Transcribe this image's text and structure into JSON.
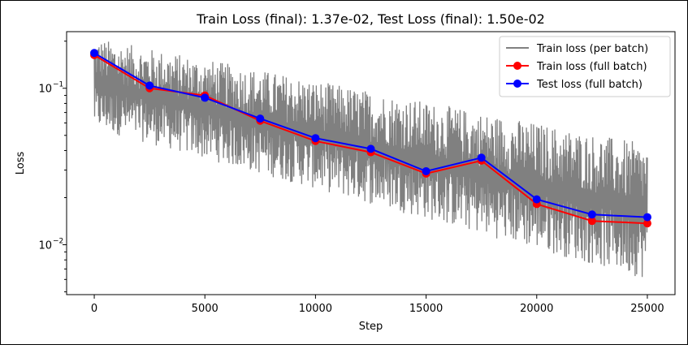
{
  "chart_data": {
    "type": "line",
    "title": "Train Loss (final): 1.37e-02, Test Loss (final): 1.50e-02",
    "xlabel": "Step",
    "ylabel": "Loss",
    "yscale": "log",
    "xlim": [
      -1250,
      26250
    ],
    "ylim": [
      0.0048,
      0.23
    ],
    "x_ticks": [
      0,
      5000,
      10000,
      15000,
      20000,
      25000
    ],
    "x_tick_labels": [
      "0",
      "5000",
      "10000",
      "15000",
      "20000",
      "25000"
    ],
    "y_major_ticks": [
      0.01,
      0.1
    ],
    "y_tick_labels": [
      "10",
      "10"
    ],
    "y_tick_exponents": [
      "−2",
      "−1"
    ],
    "legend_position": "top-right",
    "noise_band": {
      "name": "Train loss (per batch)",
      "color": "#808080",
      "x_range": [
        0,
        25000
      ],
      "upper_start": 0.21,
      "upper_end": 0.044,
      "lower_start": 0.055,
      "lower_end": 0.006
    },
    "series": [
      {
        "name": "Train loss (per batch)",
        "color": "#808080",
        "style": "line"
      },
      {
        "name": "Train loss (full batch)",
        "color": "#ff0000",
        "style": "line-marker",
        "x": [
          0,
          2500,
          5000,
          7500,
          10000,
          12500,
          15000,
          17500,
          20000,
          22500,
          25000
        ],
        "values": [
          0.163,
          0.1,
          0.09,
          0.062,
          0.046,
          0.039,
          0.0285,
          0.0345,
          0.0182,
          0.0142,
          0.0137
        ]
      },
      {
        "name": "Test loss (full batch)",
        "color": "#0000ff",
        "style": "line-marker",
        "x": [
          0,
          2500,
          5000,
          7500,
          10000,
          12500,
          15000,
          17500,
          20000,
          22500,
          25000
        ],
        "values": [
          0.168,
          0.104,
          0.087,
          0.064,
          0.048,
          0.041,
          0.0295,
          0.036,
          0.0195,
          0.0156,
          0.015
        ]
      }
    ]
  }
}
